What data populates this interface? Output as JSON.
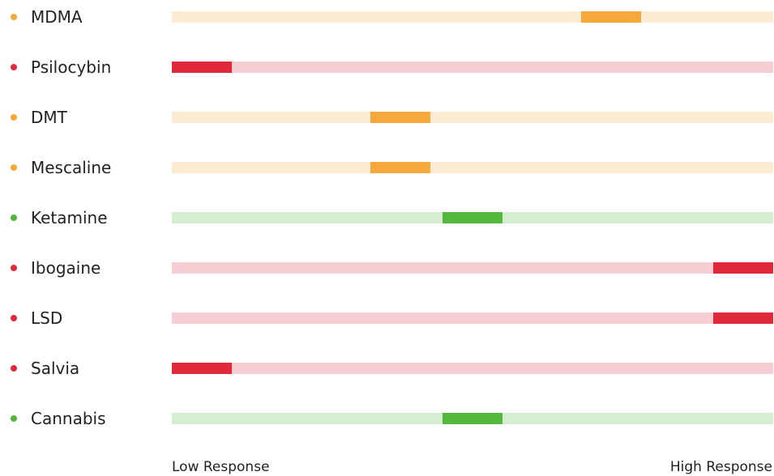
{
  "colors": {
    "orange": {
      "track": "#fcebd2",
      "marker": "#f4a93a",
      "dot": "#f4a93a"
    },
    "red": {
      "track": "#f6cdd2",
      "marker": "#e02a3c",
      "dot": "#e02a3c"
    },
    "green": {
      "track": "#d7edd2",
      "marker": "#55b83e",
      "dot": "#55b83e"
    }
  },
  "chart_data": {
    "type": "bar",
    "xlim": [
      0,
      1
    ],
    "axis": {
      "low_label": "Low Response",
      "high_label": "High Response"
    },
    "items": [
      {
        "name": "MDMA",
        "color": "orange",
        "position": 0.73
      },
      {
        "name": "Psilocybin",
        "color": "red",
        "position": 0.05
      },
      {
        "name": "DMT",
        "color": "orange",
        "position": 0.38
      },
      {
        "name": "Mescaline",
        "color": "orange",
        "position": 0.38
      },
      {
        "name": "Ketamine",
        "color": "green",
        "position": 0.5
      },
      {
        "name": "Ibogaine",
        "color": "red",
        "position": 0.95
      },
      {
        "name": "LSD",
        "color": "red",
        "position": 0.95
      },
      {
        "name": "Salvia",
        "color": "red",
        "position": 0.05
      },
      {
        "name": "Cannabis",
        "color": "green",
        "position": 0.5
      }
    ]
  }
}
